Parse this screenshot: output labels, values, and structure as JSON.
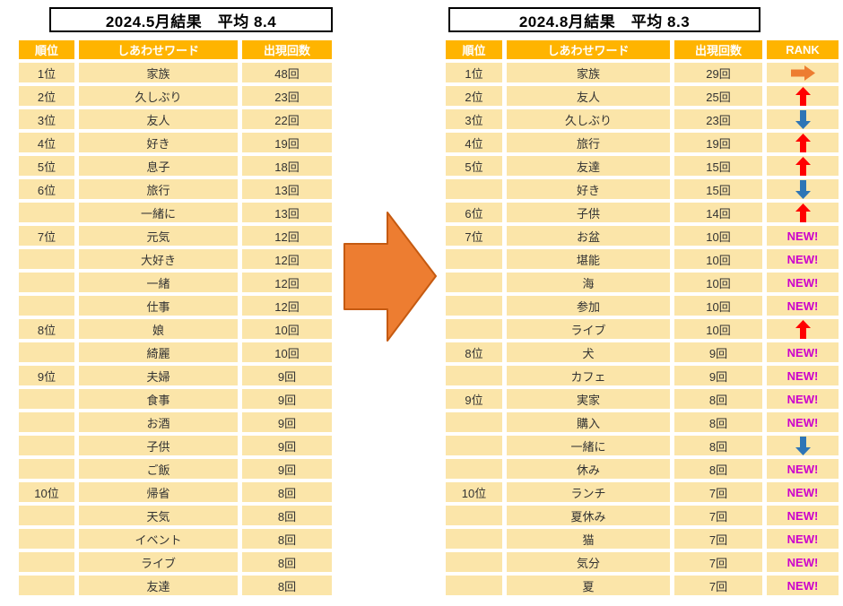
{
  "left_table": {
    "title": "2024.5月結果　平均 8.4",
    "headers": [
      "順位",
      "しあわせワード",
      "出現回数"
    ],
    "rows": [
      {
        "rank": "1位",
        "word": "家族",
        "count": "48回"
      },
      {
        "rank": "2位",
        "word": "久しぶり",
        "count": "23回"
      },
      {
        "rank": "3位",
        "word": "友人",
        "count": "22回"
      },
      {
        "rank": "4位",
        "word": "好き",
        "count": "19回"
      },
      {
        "rank": "5位",
        "word": "息子",
        "count": "18回"
      },
      {
        "rank": "6位",
        "word": "旅行",
        "count": "13回"
      },
      {
        "rank": "",
        "word": "一緒に",
        "count": "13回"
      },
      {
        "rank": "7位",
        "word": "元気",
        "count": "12回"
      },
      {
        "rank": "",
        "word": "大好き",
        "count": "12回"
      },
      {
        "rank": "",
        "word": "一緒",
        "count": "12回"
      },
      {
        "rank": "",
        "word": "仕事",
        "count": "12回"
      },
      {
        "rank": "8位",
        "word": "娘",
        "count": "10回"
      },
      {
        "rank": "",
        "word": "綺麗",
        "count": "10回"
      },
      {
        "rank": "9位",
        "word": "夫婦",
        "count": "9回"
      },
      {
        "rank": "",
        "word": "食事",
        "count": "9回"
      },
      {
        "rank": "",
        "word": "お酒",
        "count": "9回"
      },
      {
        "rank": "",
        "word": "子供",
        "count": "9回"
      },
      {
        "rank": "",
        "word": "ご飯",
        "count": "9回"
      },
      {
        "rank": "10位",
        "word": "帰省",
        "count": "8回"
      },
      {
        "rank": "",
        "word": "天気",
        "count": "8回"
      },
      {
        "rank": "",
        "word": "イベント",
        "count": "8回"
      },
      {
        "rank": "",
        "word": "ライブ",
        "count": "8回"
      },
      {
        "rank": "",
        "word": "友達",
        "count": "8回"
      }
    ]
  },
  "right_table": {
    "title": "2024.8月結果　平均 8.3",
    "headers": [
      "順位",
      "しあわせワード",
      "出現回数",
      "RANK"
    ],
    "rows": [
      {
        "rank": "1位",
        "word": "家族",
        "count": "29回",
        "change": "same"
      },
      {
        "rank": "2位",
        "word": "友人",
        "count": "25回",
        "change": "up"
      },
      {
        "rank": "3位",
        "word": "久しぶり",
        "count": "23回",
        "change": "down"
      },
      {
        "rank": "4位",
        "word": "旅行",
        "count": "19回",
        "change": "up"
      },
      {
        "rank": "5位",
        "word": "友達",
        "count": "15回",
        "change": "up"
      },
      {
        "rank": "",
        "word": "好き",
        "count": "15回",
        "change": "down"
      },
      {
        "rank": "6位",
        "word": "子供",
        "count": "14回",
        "change": "up"
      },
      {
        "rank": "7位",
        "word": "お盆",
        "count": "10回",
        "change": "new"
      },
      {
        "rank": "",
        "word": "堪能",
        "count": "10回",
        "change": "new"
      },
      {
        "rank": "",
        "word": "海",
        "count": "10回",
        "change": "new"
      },
      {
        "rank": "",
        "word": "参加",
        "count": "10回",
        "change": "new"
      },
      {
        "rank": "",
        "word": "ライブ",
        "count": "10回",
        "change": "up"
      },
      {
        "rank": "8位",
        "word": "犬",
        "count": "9回",
        "change": "new"
      },
      {
        "rank": "",
        "word": "カフェ",
        "count": "9回",
        "change": "new"
      },
      {
        "rank": "9位",
        "word": "実家",
        "count": "8回",
        "change": "new"
      },
      {
        "rank": "",
        "word": "購入",
        "count": "8回",
        "change": "new"
      },
      {
        "rank": "",
        "word": "一緒に",
        "count": "8回",
        "change": "down"
      },
      {
        "rank": "",
        "word": "休み",
        "count": "8回",
        "change": "new"
      },
      {
        "rank": "10位",
        "word": "ランチ",
        "count": "7回",
        "change": "new"
      },
      {
        "rank": "",
        "word": "夏休み",
        "count": "7回",
        "change": "new"
      },
      {
        "rank": "",
        "word": "猫",
        "count": "7回",
        "change": "new"
      },
      {
        "rank": "",
        "word": "気分",
        "count": "7回",
        "change": "new"
      },
      {
        "rank": "",
        "word": "夏",
        "count": "7回",
        "change": "new"
      }
    ]
  },
  "icons": {
    "new_label": "NEW!",
    "up_icon": "rank-up-icon",
    "down_icon": "rank-down-icon",
    "same_icon": "rank-same-icon",
    "transition_icon": "transition-arrow-icon"
  },
  "colors": {
    "header_bg": "#FFB400",
    "row_bg": "#FBE5A9",
    "cell_text": "#333333",
    "header_text": "#FFFFFF",
    "up": "#FF0000",
    "down": "#2E75B6",
    "same": "#ED7D31",
    "new": "#CC00CC",
    "big_arrow_fill": "#ED7D31",
    "big_arrow_stroke": "#C55A11"
  }
}
